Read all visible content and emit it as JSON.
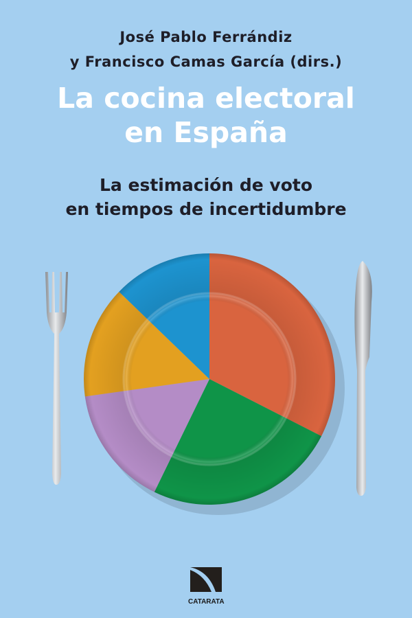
{
  "cover": {
    "authors": [
      "José Pablo Ferrándiz",
      "y Francisco Camas García (dirs.)"
    ],
    "title": [
      "La cocina electoral",
      "en España"
    ],
    "subtitle": [
      "La estimación de voto",
      "en tiempos de incertidumbre"
    ],
    "publisher": "CATARATA",
    "colors": {
      "background": "#a4cff0",
      "plate_orange": "#d9643f",
      "plate_green": "#0f9448",
      "plate_purple": "#b48cc6",
      "plate_yellow": "#e3a020",
      "plate_blue": "#1d93cf"
    },
    "icons": [
      "fork-icon",
      "plate-icon",
      "knife-icon",
      "catarata-logo-icon"
    ]
  }
}
